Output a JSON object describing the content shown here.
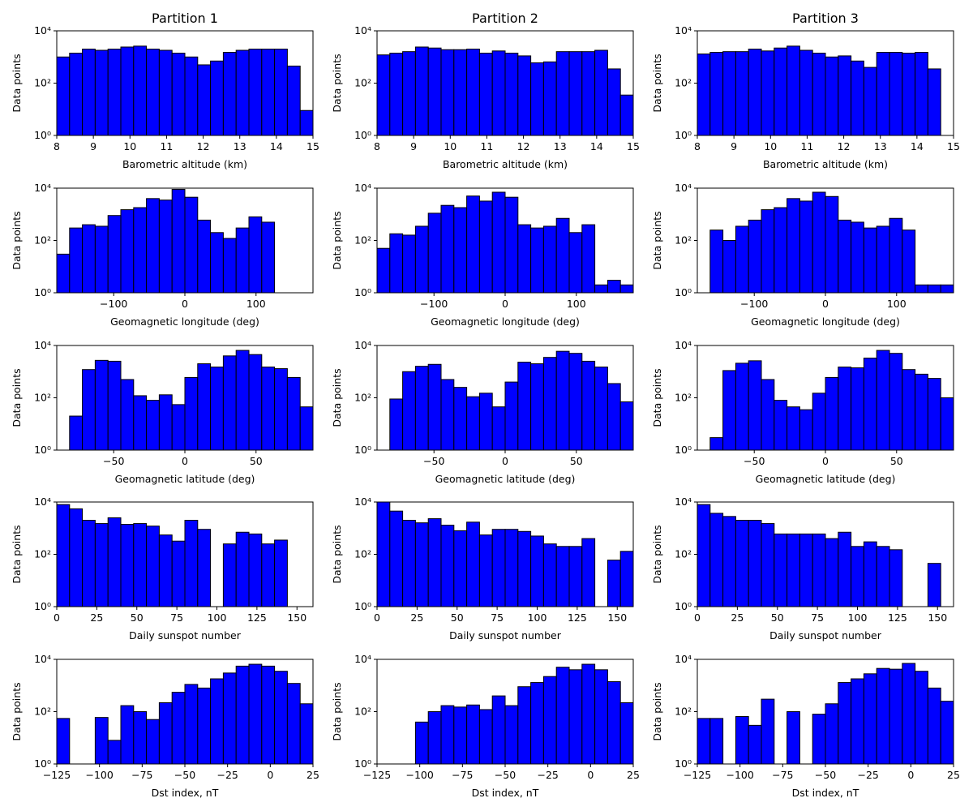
{
  "chart_data": [
    {
      "type": "histogram",
      "title": "Partition 1",
      "xlabel": "Barometric altitude (km)",
      "ylabel": "Data points",
      "yscale": "log",
      "color": "#0000ff",
      "edgecolor": "#000000",
      "bins": [
        8,
        8.35,
        8.7,
        9.05,
        9.4,
        9.75,
        10.1,
        10.45,
        10.8,
        11.15,
        11.5,
        11.85,
        12.2,
        12.55,
        12.9,
        13.25,
        13.6,
        13.95,
        14.3,
        14.65,
        15
      ],
      "values": [
        1000,
        1400,
        2000,
        1800,
        2000,
        2400,
        2600,
        2000,
        1800,
        1400,
        1000,
        500,
        700,
        1500,
        1800,
        2000,
        2000,
        2000,
        450,
        9
      ],
      "xlim": [
        8,
        15
      ],
      "xticks": [
        8,
        9,
        10,
        11,
        12,
        13,
        14,
        15
      ],
      "ylim": [
        1,
        10000
      ],
      "yticks": [
        {
          "value": 1,
          "label": "10⁰"
        },
        {
          "value": 100,
          "label": "10²"
        },
        {
          "value": 10000,
          "label": "10⁴"
        }
      ]
    },
    {
      "type": "histogram",
      "title": "Partition 2",
      "xlabel": "Barometric altitude (km)",
      "ylabel": "Data points",
      "yscale": "log",
      "color": "#0000ff",
      "edgecolor": "#000000",
      "bins": [
        8,
        8.35,
        8.7,
        9.05,
        9.4,
        9.75,
        10.1,
        10.45,
        10.8,
        11.15,
        11.5,
        11.85,
        12.2,
        12.55,
        12.9,
        13.25,
        13.6,
        13.95,
        14.3,
        14.65,
        15
      ],
      "values": [
        1200,
        1400,
        1600,
        2400,
        2200,
        1900,
        1900,
        2000,
        1400,
        1700,
        1400,
        1100,
        600,
        650,
        1600,
        1600,
        1600,
        1800,
        350,
        35
      ],
      "xlim": [
        8,
        15
      ],
      "xticks": [
        8,
        9,
        10,
        11,
        12,
        13,
        14,
        15
      ],
      "ylim": [
        1,
        10000
      ],
      "yticks": [
        {
          "value": 1,
          "label": "10⁰"
        },
        {
          "value": 100,
          "label": "10²"
        },
        {
          "value": 10000,
          "label": "10⁴"
        }
      ]
    },
    {
      "type": "histogram",
      "title": "Partition 3",
      "xlabel": "Barometric altitude (km)",
      "ylabel": "Data points",
      "yscale": "log",
      "color": "#0000ff",
      "edgecolor": "#000000",
      "bins": [
        8,
        8.35,
        8.7,
        9.05,
        9.4,
        9.75,
        10.1,
        10.45,
        10.8,
        11.15,
        11.5,
        11.85,
        12.2,
        12.55,
        12.9,
        13.25,
        13.6,
        13.95,
        14.3,
        14.65,
        15
      ],
      "values": [
        1300,
        1500,
        1600,
        1600,
        2000,
        1700,
        2200,
        2600,
        1800,
        1400,
        1000,
        1100,
        700,
        400,
        1500,
        1500,
        1400,
        1500,
        350,
        0
      ],
      "xlim": [
        8,
        15
      ],
      "xticks": [
        8,
        9,
        10,
        11,
        12,
        13,
        14,
        15
      ],
      "ylim": [
        1,
        10000
      ],
      "yticks": [
        {
          "value": 1,
          "label": "10⁰"
        },
        {
          "value": 100,
          "label": "10²"
        },
        {
          "value": 10000,
          "label": "10⁴"
        }
      ]
    },
    {
      "type": "histogram",
      "xlabel": "Geomagnetic longitude (deg)",
      "ylabel": "Data points",
      "yscale": "log",
      "color": "#0000ff",
      "edgecolor": "#000000",
      "bins": [
        -180,
        -162,
        -144,
        -126,
        -108,
        -90,
        -72,
        -54,
        -36,
        -18,
        0,
        18,
        36,
        54,
        72,
        90,
        108,
        126,
        144,
        162,
        180
      ],
      "values": [
        30,
        300,
        400,
        350,
        900,
        1500,
        1800,
        4000,
        3500,
        9000,
        4500,
        600,
        200,
        120,
        300,
        800,
        500,
        0,
        0,
        0
      ],
      "xlim": [
        -180,
        180
      ],
      "xticks": [
        {
          "value": -100,
          "label": "−100"
        },
        0,
        100
      ],
      "ylim": [
        1,
        10000
      ],
      "yticks": [
        {
          "value": 1,
          "label": "10⁰"
        },
        {
          "value": 100,
          "label": "10²"
        },
        {
          "value": 10000,
          "label": "10⁴"
        }
      ]
    },
    {
      "type": "histogram",
      "xlabel": "Geomagnetic longitude (deg)",
      "ylabel": "Data points",
      "yscale": "log",
      "color": "#0000ff",
      "edgecolor": "#000000",
      "bins": [
        -180,
        -162,
        -144,
        -126,
        -108,
        -90,
        -72,
        -54,
        -36,
        -18,
        0,
        18,
        36,
        54,
        72,
        90,
        108,
        126,
        144,
        162,
        180
      ],
      "values": [
        50,
        180,
        160,
        350,
        1100,
        2200,
        1800,
        5000,
        3200,
        7000,
        4500,
        400,
        300,
        350,
        700,
        200,
        400,
        2,
        3,
        2
      ],
      "xlim": [
        -180,
        180
      ],
      "xticks": [
        {
          "value": -100,
          "label": "−100"
        },
        0,
        100
      ],
      "ylim": [
        1,
        10000
      ],
      "yticks": [
        {
          "value": 1,
          "label": "10⁰"
        },
        {
          "value": 100,
          "label": "10²"
        },
        {
          "value": 10000,
          "label": "10⁴"
        }
      ]
    },
    {
      "type": "histogram",
      "xlabel": "Geomagnetic longitude (deg)",
      "ylabel": "Data points",
      "yscale": "log",
      "color": "#0000ff",
      "edgecolor": "#000000",
      "bins": [
        -180,
        -162,
        -144,
        -126,
        -108,
        -90,
        -72,
        -54,
        -36,
        -18,
        0,
        18,
        36,
        54,
        72,
        90,
        108,
        126,
        144,
        162,
        180
      ],
      "values": [
        0,
        250,
        100,
        350,
        600,
        1500,
        1800,
        4000,
        3200,
        7000,
        4800,
        600,
        500,
        300,
        350,
        700,
        250,
        2,
        2,
        2
      ],
      "xlim": [
        -180,
        180
      ],
      "xticks": [
        {
          "value": -100,
          "label": "−100"
        },
        0,
        100
      ],
      "ylim": [
        1,
        10000
      ],
      "yticks": [
        {
          "value": 1,
          "label": "10⁰"
        },
        {
          "value": 100,
          "label": "10²"
        },
        {
          "value": 10000,
          "label": "10⁴"
        }
      ]
    },
    {
      "type": "histogram",
      "xlabel": "Geomagnetic latitude (deg)",
      "ylabel": "Data points",
      "yscale": "log",
      "color": "#0000ff",
      "edgecolor": "#000000",
      "bins": [
        -90,
        -81,
        -72,
        -63,
        -54,
        -45,
        -36,
        -27,
        -18,
        -9,
        0,
        9,
        18,
        27,
        36,
        45,
        54,
        63,
        72,
        81,
        90
      ],
      "values": [
        0,
        20,
        1200,
        2700,
        2500,
        500,
        120,
        80,
        130,
        55,
        600,
        2000,
        1500,
        4000,
        6500,
        4500,
        1500,
        1300,
        600,
        45
      ],
      "xlim": [
        -90,
        90
      ],
      "xticks": [
        {
          "value": -50,
          "label": "−50"
        },
        0,
        50
      ],
      "ylim": [
        1,
        10000
      ],
      "yticks": [
        {
          "value": 1,
          "label": "10⁰"
        },
        {
          "value": 100,
          "label": "10²"
        },
        {
          "value": 10000,
          "label": "10⁴"
        }
      ]
    },
    {
      "type": "histogram",
      "xlabel": "Geomagnetic latitude (deg)",
      "ylabel": "Data points",
      "yscale": "log",
      "color": "#0000ff",
      "edgecolor": "#000000",
      "bins": [
        -90,
        -81,
        -72,
        -63,
        -54,
        -45,
        -36,
        -27,
        -18,
        -9,
        0,
        9,
        18,
        27,
        36,
        45,
        54,
        63,
        72,
        81,
        90
      ],
      "values": [
        0,
        90,
        1000,
        1600,
        1900,
        500,
        250,
        110,
        150,
        45,
        400,
        2300,
        2000,
        3500,
        6000,
        5000,
        2500,
        1500,
        350,
        70
      ],
      "xlim": [
        -90,
        90
      ],
      "xticks": [
        {
          "value": -50,
          "label": "−50"
        },
        0,
        50
      ],
      "ylim": [
        1,
        10000
      ],
      "yticks": [
        {
          "value": 1,
          "label": "10⁰"
        },
        {
          "value": 100,
          "label": "10²"
        },
        {
          "value": 10000,
          "label": "10⁴"
        }
      ]
    },
    {
      "type": "histogram",
      "xlabel": "Geomagnetic latitude (deg)",
      "ylabel": "Data points",
      "yscale": "log",
      "color": "#0000ff",
      "edgecolor": "#000000",
      "bins": [
        -90,
        -81,
        -72,
        -63,
        -54,
        -45,
        -36,
        -27,
        -18,
        -9,
        0,
        9,
        18,
        27,
        36,
        45,
        54,
        63,
        72,
        81,
        90
      ],
      "values": [
        0,
        3,
        1100,
        2100,
        2600,
        500,
        80,
        45,
        35,
        150,
        600,
        1500,
        1400,
        3300,
        6500,
        5000,
        1200,
        800,
        550,
        100
      ],
      "xlim": [
        -90,
        90
      ],
      "xticks": [
        {
          "value": -50,
          "label": "−50"
        },
        0,
        50
      ],
      "ylim": [
        1,
        10000
      ],
      "yticks": [
        {
          "value": 1,
          "label": "10⁰"
        },
        {
          "value": 100,
          "label": "10²"
        },
        {
          "value": 10000,
          "label": "10⁴"
        }
      ]
    },
    {
      "type": "histogram",
      "xlabel": "Daily sunspot number",
      "ylabel": "Data points",
      "yscale": "log",
      "color": "#0000ff",
      "edgecolor": "#000000",
      "bins": [
        0,
        8,
        16,
        24,
        32,
        40,
        48,
        56,
        64,
        72,
        80,
        88,
        96,
        104,
        112,
        120,
        128,
        136,
        144,
        152,
        160
      ],
      "values": [
        8000,
        5500,
        2000,
        1500,
        2500,
        1400,
        1500,
        1200,
        550,
        320,
        2000,
        900,
        0,
        250,
        700,
        600,
        250,
        350,
        0,
        0
      ],
      "xlim": [
        0,
        160
      ],
      "xticks": [
        0,
        25,
        50,
        75,
        100,
        125,
        150
      ],
      "ylim": [
        1,
        10000
      ],
      "yticks": [
        {
          "value": 1,
          "label": "10⁰"
        },
        {
          "value": 100,
          "label": "10²"
        },
        {
          "value": 10000,
          "label": "10⁴"
        }
      ]
    },
    {
      "type": "histogram",
      "xlabel": "Daily sunspot number",
      "ylabel": "Data points",
      "yscale": "log",
      "color": "#0000ff",
      "edgecolor": "#000000",
      "bins": [
        0,
        8,
        16,
        24,
        32,
        40,
        48,
        56,
        64,
        72,
        80,
        88,
        96,
        104,
        112,
        120,
        128,
        136,
        144,
        152,
        160
      ],
      "values": [
        10000,
        4500,
        2000,
        1600,
        2300,
        1300,
        800,
        1700,
        550,
        900,
        900,
        750,
        500,
        250,
        200,
        200,
        400,
        0,
        60,
        130
      ],
      "xlim": [
        0,
        160
      ],
      "xticks": [
        0,
        25,
        50,
        75,
        100,
        125,
        150
      ],
      "ylim": [
        1,
        10000
      ],
      "yticks": [
        {
          "value": 1,
          "label": "10⁰"
        },
        {
          "value": 100,
          "label": "10²"
        },
        {
          "value": 10000,
          "label": "10⁴"
        }
      ]
    },
    {
      "type": "histogram",
      "xlabel": "Daily sunspot number",
      "ylabel": "Data points",
      "yscale": "log",
      "color": "#0000ff",
      "edgecolor": "#000000",
      "bins": [
        0,
        8,
        16,
        24,
        32,
        40,
        48,
        56,
        64,
        72,
        80,
        88,
        96,
        104,
        112,
        120,
        128,
        136,
        144,
        152,
        160
      ],
      "values": [
        8000,
        3700,
        2800,
        2000,
        2000,
        1500,
        600,
        600,
        600,
        600,
        400,
        700,
        200,
        300,
        200,
        150,
        0,
        0,
        45,
        0
      ],
      "xlim": [
        0,
        160
      ],
      "xticks": [
        0,
        25,
        50,
        75,
        100,
        125,
        150
      ],
      "ylim": [
        1,
        10000
      ],
      "yticks": [
        {
          "value": 1,
          "label": "10⁰"
        },
        {
          "value": 100,
          "label": "10²"
        },
        {
          "value": 10000,
          "label": "10⁴"
        }
      ]
    },
    {
      "type": "histogram",
      "xlabel": "Dst index, nT",
      "ylabel": "Data points",
      "yscale": "log",
      "color": "#0000ff",
      "edgecolor": "#000000",
      "bins": [
        -125,
        -117.5,
        -110,
        -102.5,
        -95,
        -87.5,
        -80,
        -72.5,
        -65,
        -57.5,
        -50,
        -42.5,
        -35,
        -27.5,
        -20,
        -12.5,
        -5,
        2.5,
        10,
        17.5,
        25
      ],
      "values": [
        55,
        0,
        0,
        60,
        8,
        170,
        100,
        50,
        220,
        550,
        1100,
        800,
        1800,
        3000,
        5500,
        6500,
        5500,
        3500,
        1200,
        200
      ],
      "xlim": [
        -125,
        25
      ],
      "xticks": [
        {
          "value": -125,
          "label": "−125"
        },
        {
          "value": -100,
          "label": "−100"
        },
        {
          "value": -75,
          "label": "−75"
        },
        {
          "value": -50,
          "label": "−50"
        },
        {
          "value": -25,
          "label": "−25"
        },
        0,
        25
      ],
      "ylim": [
        1,
        10000
      ],
      "yticks": [
        {
          "value": 1,
          "label": "10⁰"
        },
        {
          "value": 100,
          "label": "10²"
        },
        {
          "value": 10000,
          "label": "10⁴"
        }
      ]
    },
    {
      "type": "histogram",
      "xlabel": "Dst index, nT",
      "ylabel": "Data points",
      "yscale": "log",
      "color": "#0000ff",
      "edgecolor": "#000000",
      "bins": [
        -125,
        -117.5,
        -110,
        -102.5,
        -95,
        -87.5,
        -80,
        -72.5,
        -65,
        -57.5,
        -50,
        -42.5,
        -35,
        -27.5,
        -20,
        -12.5,
        -5,
        2.5,
        10,
        17.5,
        25
      ],
      "values": [
        0,
        0,
        0,
        40,
        100,
        170,
        150,
        180,
        120,
        400,
        170,
        900,
        1300,
        2200,
        5000,
        4000,
        6500,
        4000,
        1400,
        220
      ],
      "xlim": [
        -125,
        25
      ],
      "xticks": [
        {
          "value": -125,
          "label": "−125"
        },
        {
          "value": -100,
          "label": "−100"
        },
        {
          "value": -75,
          "label": "−75"
        },
        {
          "value": -50,
          "label": "−50"
        },
        {
          "value": -25,
          "label": "−25"
        },
        0,
        25
      ],
      "ylim": [
        1,
        10000
      ],
      "yticks": [
        {
          "value": 1,
          "label": "10⁰"
        },
        {
          "value": 100,
          "label": "10²"
        },
        {
          "value": 10000,
          "label": "10⁴"
        }
      ]
    },
    {
      "type": "histogram",
      "xlabel": "Dst index, nT",
      "ylabel": "Data points",
      "yscale": "log",
      "color": "#0000ff",
      "edgecolor": "#000000",
      "bins": [
        -125,
        -117.5,
        -110,
        -102.5,
        -95,
        -87.5,
        -80,
        -72.5,
        -65,
        -57.5,
        -50,
        -42.5,
        -35,
        -27.5,
        -20,
        -12.5,
        -5,
        2.5,
        10,
        17.5,
        25
      ],
      "values": [
        55,
        55,
        0,
        65,
        30,
        300,
        0,
        100,
        0,
        80,
        200,
        1300,
        1800,
        2800,
        4500,
        4200,
        7000,
        3500,
        800,
        250
      ],
      "xlim": [
        -125,
        25
      ],
      "xticks": [
        {
          "value": -125,
          "label": "−125"
        },
        {
          "value": -100,
          "label": "−100"
        },
        {
          "value": -75,
          "label": "−75"
        },
        {
          "value": -50,
          "label": "−50"
        },
        {
          "value": -25,
          "label": "−25"
        },
        0,
        25
      ],
      "ylim": [
        1,
        10000
      ],
      "yticks": [
        {
          "value": 1,
          "label": "10⁰"
        },
        {
          "value": 100,
          "label": "10²"
        },
        {
          "value": 10000,
          "label": "10⁴"
        }
      ]
    }
  ]
}
